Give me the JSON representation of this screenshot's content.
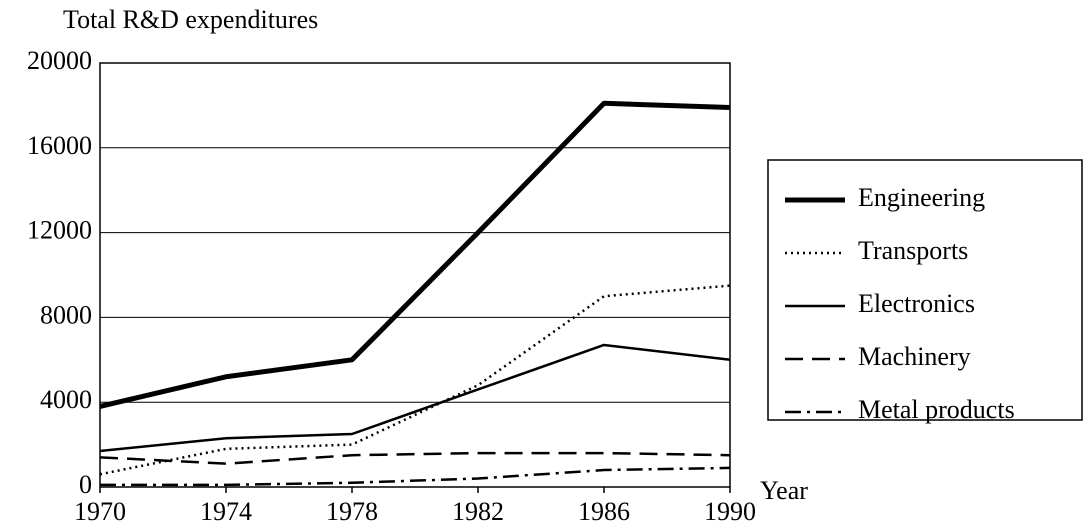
{
  "chart_data": {
    "type": "line",
    "ylabel": "Total R&D expenditures",
    "xlabel": "Year",
    "x": [
      1970,
      1974,
      1978,
      1982,
      1986,
      1990
    ],
    "xlim": [
      1970,
      1990
    ],
    "xticks": [
      1970,
      1974,
      1978,
      1982,
      1986,
      1990
    ],
    "ylim": [
      0,
      20000
    ],
    "yticks": [
      0,
      4000,
      8000,
      12000,
      16000,
      20000
    ],
    "grid": true,
    "legend": "right",
    "series": [
      {
        "name": "Engineering",
        "color": "#000000",
        "linestyle": "solid",
        "linewidth": 5,
        "values": [
          3800,
          5200,
          6000,
          12000,
          18100,
          17900
        ]
      },
      {
        "name": "Transports",
        "color": "#000000",
        "linestyle": "dotted",
        "linewidth": 2.5,
        "values": [
          600,
          1800,
          2000,
          4800,
          9000,
          9500
        ]
      },
      {
        "name": "Electronics",
        "color": "#000000",
        "linestyle": "solid",
        "linewidth": 2.5,
        "values": [
          1700,
          2300,
          2500,
          4600,
          6700,
          6000
        ]
      },
      {
        "name": "Machinery",
        "color": "#000000",
        "linestyle": "dashed",
        "linewidth": 2.5,
        "values": [
          1400,
          1100,
          1500,
          1600,
          1600,
          1500
        ]
      },
      {
        "name": "Metal products",
        "color": "#000000",
        "linestyle": "dashdot",
        "linewidth": 2.5,
        "values": [
          100,
          100,
          200,
          400,
          800,
          900
        ]
      }
    ]
  }
}
